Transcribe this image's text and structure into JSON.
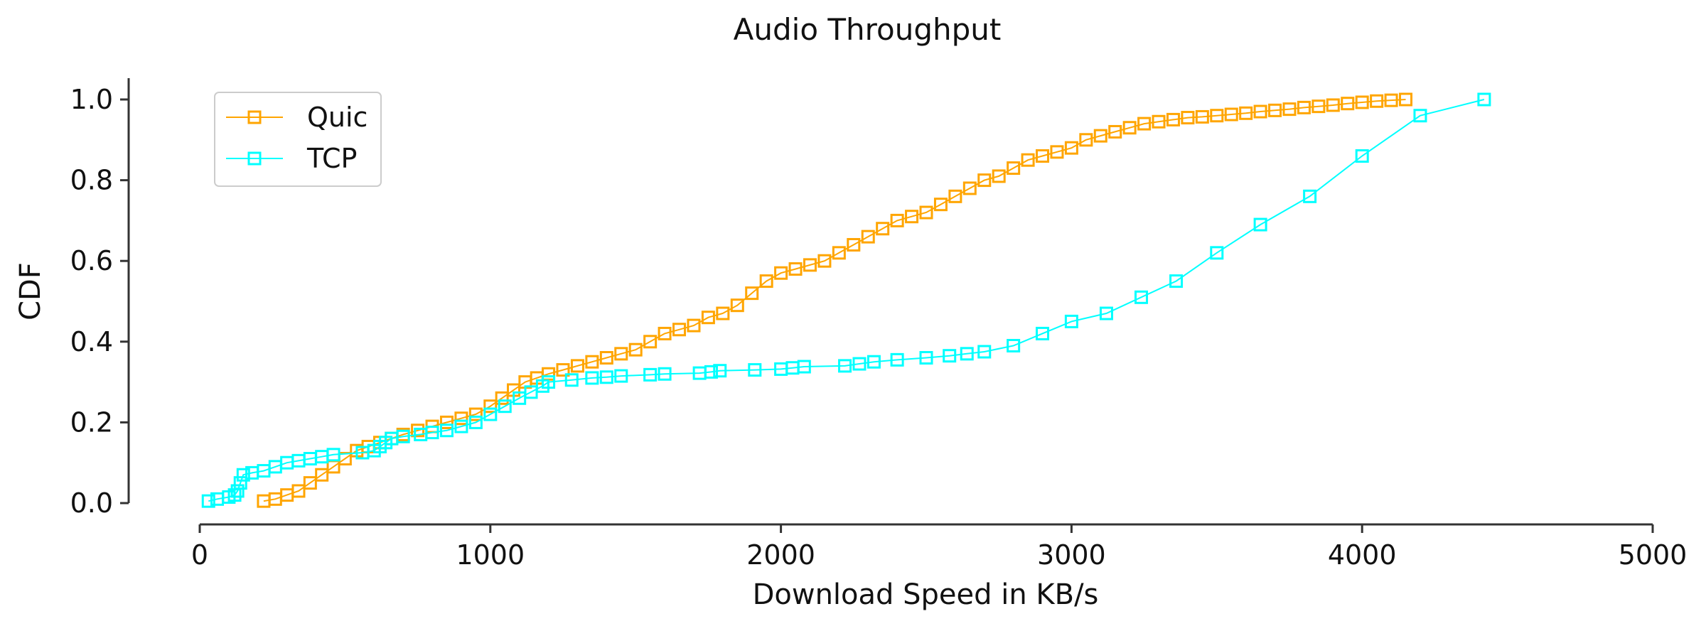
{
  "chart_data": {
    "type": "line",
    "title": "Audio Throughput",
    "xlabel": "Download Speed in KB/s",
    "ylabel": "CDF",
    "xlim": [
      0,
      5000
    ],
    "ylim": [
      0,
      1.0
    ],
    "x_ticks": [
      0,
      1000,
      2000,
      3000,
      4000,
      5000
    ],
    "y_ticks": [
      0.0,
      0.2,
      0.4,
      0.6,
      0.8,
      1.0
    ],
    "x_tick_labels": [
      "0",
      "1000",
      "2000",
      "3000",
      "4000",
      "5000"
    ],
    "y_tick_labels": [
      "0.0",
      "0.2",
      "0.4",
      "0.6",
      "0.8",
      "1.0"
    ],
    "grid": false,
    "legend": "top-left",
    "marker": "square-open",
    "series": [
      {
        "name": "Quic",
        "color": "#FFA500",
        "x": [
          220,
          260,
          300,
          340,
          380,
          420,
          460,
          500,
          540,
          580,
          620,
          660,
          700,
          750,
          800,
          850,
          900,
          950,
          1000,
          1040,
          1080,
          1120,
          1160,
          1200,
          1250,
          1300,
          1350,
          1400,
          1450,
          1500,
          1550,
          1600,
          1650,
          1700,
          1750,
          1800,
          1850,
          1900,
          1950,
          2000,
          2050,
          2100,
          2150,
          2200,
          2250,
          2300,
          2350,
          2400,
          2450,
          2500,
          2550,
          2600,
          2650,
          2700,
          2750,
          2800,
          2850,
          2900,
          2950,
          3000,
          3050,
          3100,
          3150,
          3200,
          3250,
          3300,
          3350,
          3400,
          3450,
          3500,
          3550,
          3600,
          3650,
          3700,
          3750,
          3800,
          3850,
          3900,
          3950,
          4000,
          4050,
          4100,
          4150
        ],
        "y": [
          0.005,
          0.01,
          0.02,
          0.03,
          0.05,
          0.07,
          0.09,
          0.11,
          0.13,
          0.14,
          0.15,
          0.16,
          0.17,
          0.18,
          0.19,
          0.2,
          0.21,
          0.22,
          0.24,
          0.26,
          0.28,
          0.3,
          0.31,
          0.32,
          0.33,
          0.34,
          0.35,
          0.36,
          0.37,
          0.38,
          0.4,
          0.42,
          0.43,
          0.44,
          0.46,
          0.47,
          0.49,
          0.52,
          0.55,
          0.57,
          0.58,
          0.59,
          0.6,
          0.62,
          0.64,
          0.66,
          0.68,
          0.7,
          0.71,
          0.72,
          0.74,
          0.76,
          0.78,
          0.8,
          0.81,
          0.83,
          0.85,
          0.86,
          0.87,
          0.88,
          0.9,
          0.91,
          0.92,
          0.93,
          0.94,
          0.945,
          0.95,
          0.955,
          0.957,
          0.96,
          0.963,
          0.966,
          0.97,
          0.973,
          0.976,
          0.98,
          0.983,
          0.986,
          0.99,
          0.993,
          0.996,
          0.998,
          1.0
        ]
      },
      {
        "name": "TCP",
        "color": "#00FFFF",
        "x": [
          30,
          60,
          100,
          120,
          130,
          140,
          150,
          180,
          220,
          260,
          300,
          340,
          380,
          420,
          460,
          560,
          600,
          620,
          640,
          660,
          700,
          760,
          800,
          850,
          900,
          950,
          1000,
          1050,
          1100,
          1140,
          1180,
          1200,
          1280,
          1350,
          1400,
          1450,
          1550,
          1600,
          1720,
          1760,
          1790,
          1910,
          2000,
          2040,
          2080,
          2220,
          2270,
          2320,
          2400,
          2500,
          2580,
          2640,
          2700,
          2800,
          2900,
          3000,
          3120,
          3240,
          3360,
          3500,
          3650,
          3820,
          4000,
          4200,
          4420
        ],
        "y": [
          0.005,
          0.01,
          0.015,
          0.02,
          0.03,
          0.05,
          0.07,
          0.075,
          0.08,
          0.09,
          0.1,
          0.105,
          0.11,
          0.115,
          0.12,
          0.125,
          0.13,
          0.14,
          0.15,
          0.16,
          0.165,
          0.17,
          0.175,
          0.18,
          0.19,
          0.2,
          0.22,
          0.24,
          0.26,
          0.275,
          0.29,
          0.3,
          0.305,
          0.31,
          0.312,
          0.315,
          0.318,
          0.32,
          0.322,
          0.325,
          0.328,
          0.33,
          0.332,
          0.335,
          0.338,
          0.34,
          0.345,
          0.35,
          0.355,
          0.36,
          0.365,
          0.37,
          0.375,
          0.39,
          0.42,
          0.45,
          0.47,
          0.51,
          0.55,
          0.62,
          0.69,
          0.76,
          0.86,
          0.96,
          1.0
        ]
      }
    ]
  }
}
